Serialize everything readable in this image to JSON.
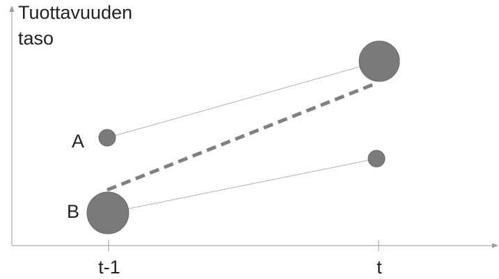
{
  "diagram": {
    "y_axis_title_line1": "Tuottavuuden",
    "y_axis_title_line2": "taso",
    "x_tick_labels": [
      "t-1",
      "t"
    ],
    "point_labels": {
      "a": "A",
      "b": "B"
    },
    "colors": {
      "axis": "#9a9a9a",
      "bubble_fill": "#7a7a7a",
      "bubble_stroke": "#6a6a6a",
      "thin_line": "#b0b0b0",
      "dashed_line": "#808080",
      "text": "#222222"
    }
  }
}
